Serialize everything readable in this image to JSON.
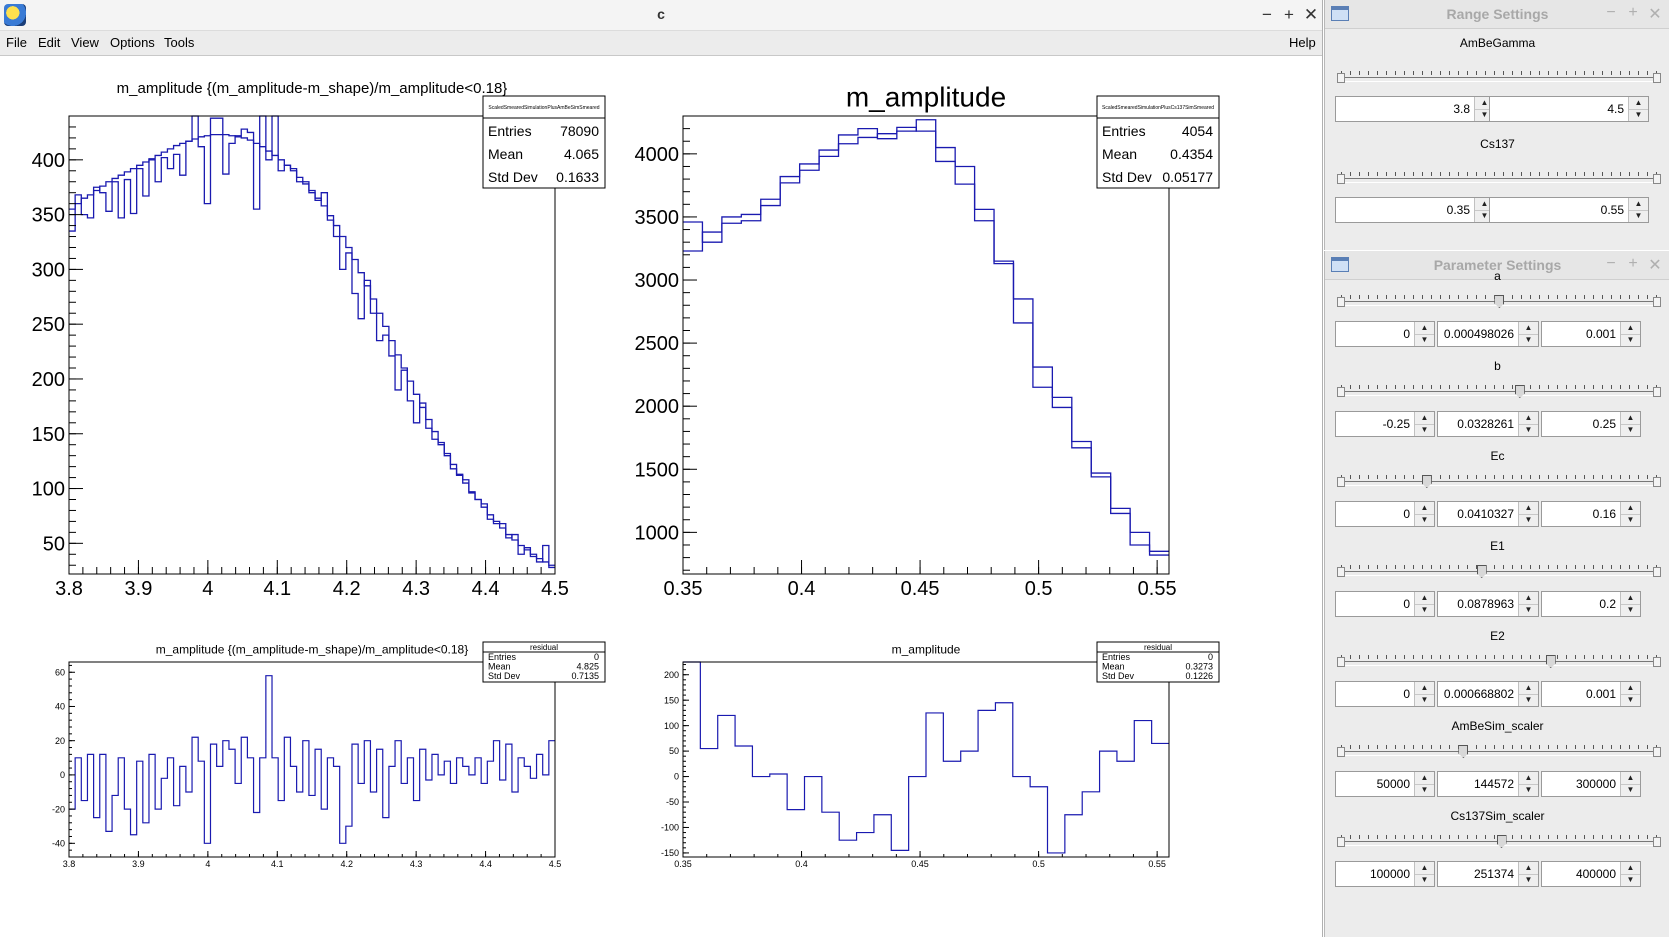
{
  "canvas_window": {
    "title": "c",
    "controls": {
      "minimize": "−",
      "maximize": "+",
      "close": "✕"
    },
    "menu": [
      "File",
      "Edit",
      "View",
      "Options",
      "Tools"
    ],
    "help": "Help"
  },
  "range_panel": {
    "title": "Range Settings",
    "controls": {
      "minimize": "−",
      "maximize": "+",
      "close": "✕"
    },
    "groups": [
      {
        "label": "AmBeGamma",
        "min": "3.8",
        "max": "4.5"
      },
      {
        "label": "Cs137",
        "min": "0.35",
        "max": "0.55"
      }
    ]
  },
  "param_panel": {
    "title": "Parameter Settings",
    "controls": {
      "minimize": "−",
      "maximize": "+",
      "close": "✕"
    },
    "params": [
      {
        "label": "a",
        "min": "0",
        "value": "0.000498026",
        "max": "0.001",
        "level": 0.498
      },
      {
        "label": "b",
        "min": "-0.25",
        "value": "0.0328261",
        "max": "0.25",
        "level": 0.566
      },
      {
        "label": "Ec",
        "min": "0",
        "value": "0.0410327",
        "max": "0.16",
        "level": 0.256
      },
      {
        "label": "E1",
        "min": "0",
        "value": "0.0878963",
        "max": "0.2",
        "level": 0.439
      },
      {
        "label": "E2",
        "min": "0",
        "value": "0.000668802",
        "max": "0.001",
        "level": 0.669
      },
      {
        "label": "AmBeSim_scaler",
        "min": "50000",
        "value": "144572",
        "max": "300000",
        "level": 0.378
      },
      {
        "label": "Cs137Sim_scaler",
        "min": "100000",
        "value": "251374",
        "max": "400000",
        "level": 0.505
      }
    ]
  },
  "chart_data": [
    {
      "type": "line",
      "title": "m_amplitude {(m_amplitude-m_shape)/m_amplitude<0.18}",
      "xlim": [
        3.8,
        4.5
      ],
      "ylim": [
        22,
        440
      ],
      "xticks": [
        "3.8",
        "3.9",
        "4",
        "4.1",
        "4.2",
        "4.3",
        "4.4",
        "4.5"
      ],
      "yticks": [
        "50",
        "100",
        "150",
        "200",
        "250",
        "300",
        "350",
        "400"
      ],
      "stats": {
        "name": "ScaledSmearedSimulationPlusAmBeSimSmeared",
        "rows": [
          [
            "Entries",
            "78090"
          ],
          [
            "Mean",
            "4.065"
          ],
          [
            "Std Dev",
            "0.1633"
          ]
        ]
      },
      "series": [
        {
          "values": [
            355,
            360,
            365,
            368,
            372,
            376,
            380,
            383,
            386,
            389,
            392,
            395,
            398,
            401,
            404,
            407,
            410,
            413,
            415,
            417,
            419,
            421,
            422,
            423,
            423,
            423,
            422,
            421,
            420,
            418,
            415,
            412,
            408,
            404,
            400,
            395,
            390,
            384,
            378,
            372,
            365,
            358,
            349,
            340,
            330,
            320,
            309,
            297,
            285,
            273,
            260,
            248,
            235,
            222,
            210,
            198,
            186,
            174,
            163,
            152,
            142,
            132,
            122,
            113,
            105,
            97,
            90,
            83,
            76,
            70,
            64,
            58,
            53,
            48,
            44,
            40,
            36,
            33,
            30
          ]
        },
        {
          "values": [
            335,
            368,
            350,
            347,
            375,
            370,
            353,
            380,
            347,
            382,
            351,
            392,
            367,
            400,
            380,
            402,
            392,
            405,
            386,
            417,
            440,
            412,
            360,
            438,
            438,
            387,
            415,
            422,
            428,
            425,
            355,
            440,
            400,
            440,
            390,
            395,
            392,
            380,
            380,
            370,
            363,
            370,
            345,
            330,
            300,
            315,
            278,
            255,
            290,
            260,
            235,
            240,
            221,
            190,
            208,
            180,
            160,
            178,
            155,
            145,
            140,
            130,
            118,
            112,
            108,
            96,
            90,
            86,
            72,
            68,
            68,
            55,
            58,
            40,
            46,
            38,
            33,
            48,
            28
          ]
        }
      ]
    },
    {
      "type": "line",
      "title": "m_amplitude",
      "xlim": [
        0.35,
        0.555
      ],
      "ylim": [
        670,
        4300
      ],
      "xticks": [
        "0.35",
        "0.4",
        "0.45",
        "0.5",
        "0.55"
      ],
      "yticks": [
        "1000",
        "1500",
        "2000",
        "2500",
        "3000",
        "3500",
        "4000"
      ],
      "stats": {
        "name": "ScaledSmearedSimulationPlusCs137SimSmeared",
        "rows": [
          [
            "Entries",
            "4054"
          ],
          [
            "Mean",
            "0.4354"
          ],
          [
            "Std Dev",
            "0.05177"
          ]
        ]
      },
      "series": [
        {
          "values": [
            3230,
            3380,
            3450,
            3470,
            3590,
            3770,
            3870,
            3980,
            4080,
            4130,
            4160,
            4210,
            4180,
            3940,
            3760,
            3470,
            3130,
            2660,
            2310,
            2070,
            1720,
            1470,
            1190,
            1000,
            850
          ]
        },
        {
          "values": [
            3460,
            3300,
            3500,
            3520,
            3640,
            3820,
            3920,
            4030,
            4150,
            4200,
            4120,
            4180,
            4270,
            4050,
            3900,
            3560,
            3150,
            2850,
            2150,
            1990,
            1670,
            1440,
            1150,
            900,
            820
          ]
        }
      ]
    },
    {
      "type": "line",
      "title": "m_amplitude {(m_amplitude-m_shape)/m_amplitude<0.18}",
      "xlim": [
        3.8,
        4.5
      ],
      "ylim": [
        -48,
        66
      ],
      "xticks": [
        "3.8",
        "3.9",
        "4",
        "4.1",
        "4.2",
        "4.3",
        "4.4",
        "4.5"
      ],
      "yticks": [
        "-40",
        "-20",
        "0",
        "20",
        "40",
        "60"
      ],
      "stats": {
        "name": "residual",
        "rows": [
          [
            "Entries",
            "0"
          ],
          [
            "Mean",
            "4.825"
          ],
          [
            "Std Dev",
            "0.7135"
          ]
        ]
      },
      "series": [
        {
          "values": [
            -20,
            10,
            -15,
            12,
            -25,
            12,
            -33,
            -12,
            10,
            -20,
            -35,
            8,
            -28,
            12,
            -20,
            -2,
            10,
            -18,
            5,
            -10,
            22,
            8,
            -40,
            18,
            5,
            20,
            15,
            -5,
            22,
            10,
            -22,
            10,
            58,
            10,
            -15,
            22,
            5,
            -10,
            20,
            -12,
            15,
            -20,
            10,
            5,
            -40,
            -30,
            18,
            -5,
            20,
            -10,
            15,
            -25,
            5,
            20,
            -5,
            10,
            -15,
            15,
            -3,
            12,
            0,
            8,
            -5,
            10,
            5,
            0,
            10,
            -5,
            8,
            20,
            -3,
            18,
            -10,
            10,
            5,
            -2,
            12,
            0,
            20
          ]
        }
      ]
    },
    {
      "type": "line",
      "title": "m_amplitude",
      "xlim": [
        0.35,
        0.555
      ],
      "ylim": [
        -158,
        225
      ],
      "xticks": [
        "0.35",
        "0.4",
        "0.45",
        "0.5",
        "0.55"
      ],
      "yticks": [
        "-150",
        "-100",
        "-50",
        "0",
        "50",
        "100",
        "150",
        "200"
      ],
      "stats": {
        "name": "residual",
        "rows": [
          [
            "Entries",
            "0"
          ],
          [
            "Mean",
            "0.3273"
          ],
          [
            "Std Dev",
            "0.1226"
          ]
        ]
      },
      "series": [
        {
          "values": [
            225,
            55,
            120,
            60,
            0,
            5,
            -65,
            0,
            -70,
            -125,
            -110,
            -75,
            -145,
            0,
            125,
            30,
            50,
            130,
            145,
            0,
            -20,
            -150,
            -75,
            -30,
            50,
            30,
            110,
            65
          ]
        }
      ]
    }
  ]
}
